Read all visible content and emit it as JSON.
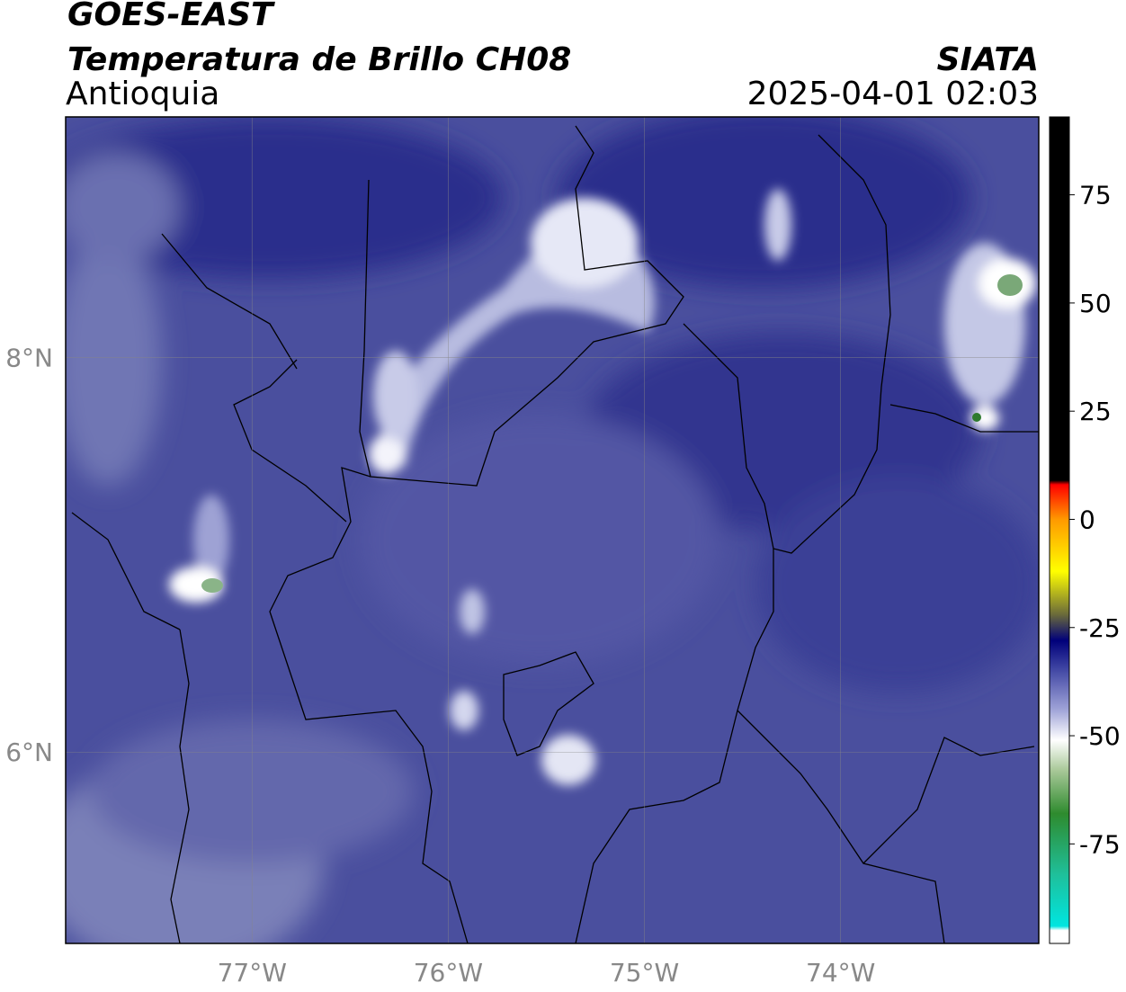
{
  "header": {
    "title": "GOES-EAST",
    "subtitle": "Temperatura de Brillo CH08",
    "region": "Antioquia",
    "source": "SIATA",
    "datetime": "2025-04-01 02:03"
  },
  "map": {
    "xlim": [
      -77.95,
      -72.99
    ],
    "ylim": [
      5.03,
      9.22
    ],
    "grid": true,
    "xticks": [
      {
        "value": -77,
        "label": "77°W"
      },
      {
        "value": -76,
        "label": "76°W"
      },
      {
        "value": -75,
        "label": "75°W"
      },
      {
        "value": -74,
        "label": "74°W"
      }
    ],
    "yticks": [
      {
        "value": 6,
        "label": "6°N"
      },
      {
        "value": 8,
        "label": "8°N"
      }
    ]
  },
  "colorbar": {
    "lim": [
      -98,
      93
    ],
    "ticks": [
      -75,
      -50,
      -25,
      0,
      25,
      50,
      75
    ],
    "stops": [
      {
        "value": -98,
        "color": "#ffffff"
      },
      {
        "value": -95,
        "color": "#ffffff"
      },
      {
        "value": -94,
        "color": "#00e5e0"
      },
      {
        "value": -82,
        "color": "#1fbf9a"
      },
      {
        "value": -68,
        "color": "#2e8b2e"
      },
      {
        "value": -58,
        "color": "#a8c898"
      },
      {
        "value": -51,
        "color": "#ffffff"
      },
      {
        "value": -44,
        "color": "#a0a4d8"
      },
      {
        "value": -34,
        "color": "#3a40a0"
      },
      {
        "value": -28,
        "color": "#00007a"
      },
      {
        "value": -22,
        "color": "#6a6a3a"
      },
      {
        "value": -12,
        "color": "#ffff00"
      },
      {
        "value": 0,
        "color": "#ff9900"
      },
      {
        "value": 8,
        "color": "#ff0000"
      },
      {
        "value": 9,
        "color": "#000000"
      },
      {
        "value": 93,
        "color": "#000000"
      }
    ]
  }
}
